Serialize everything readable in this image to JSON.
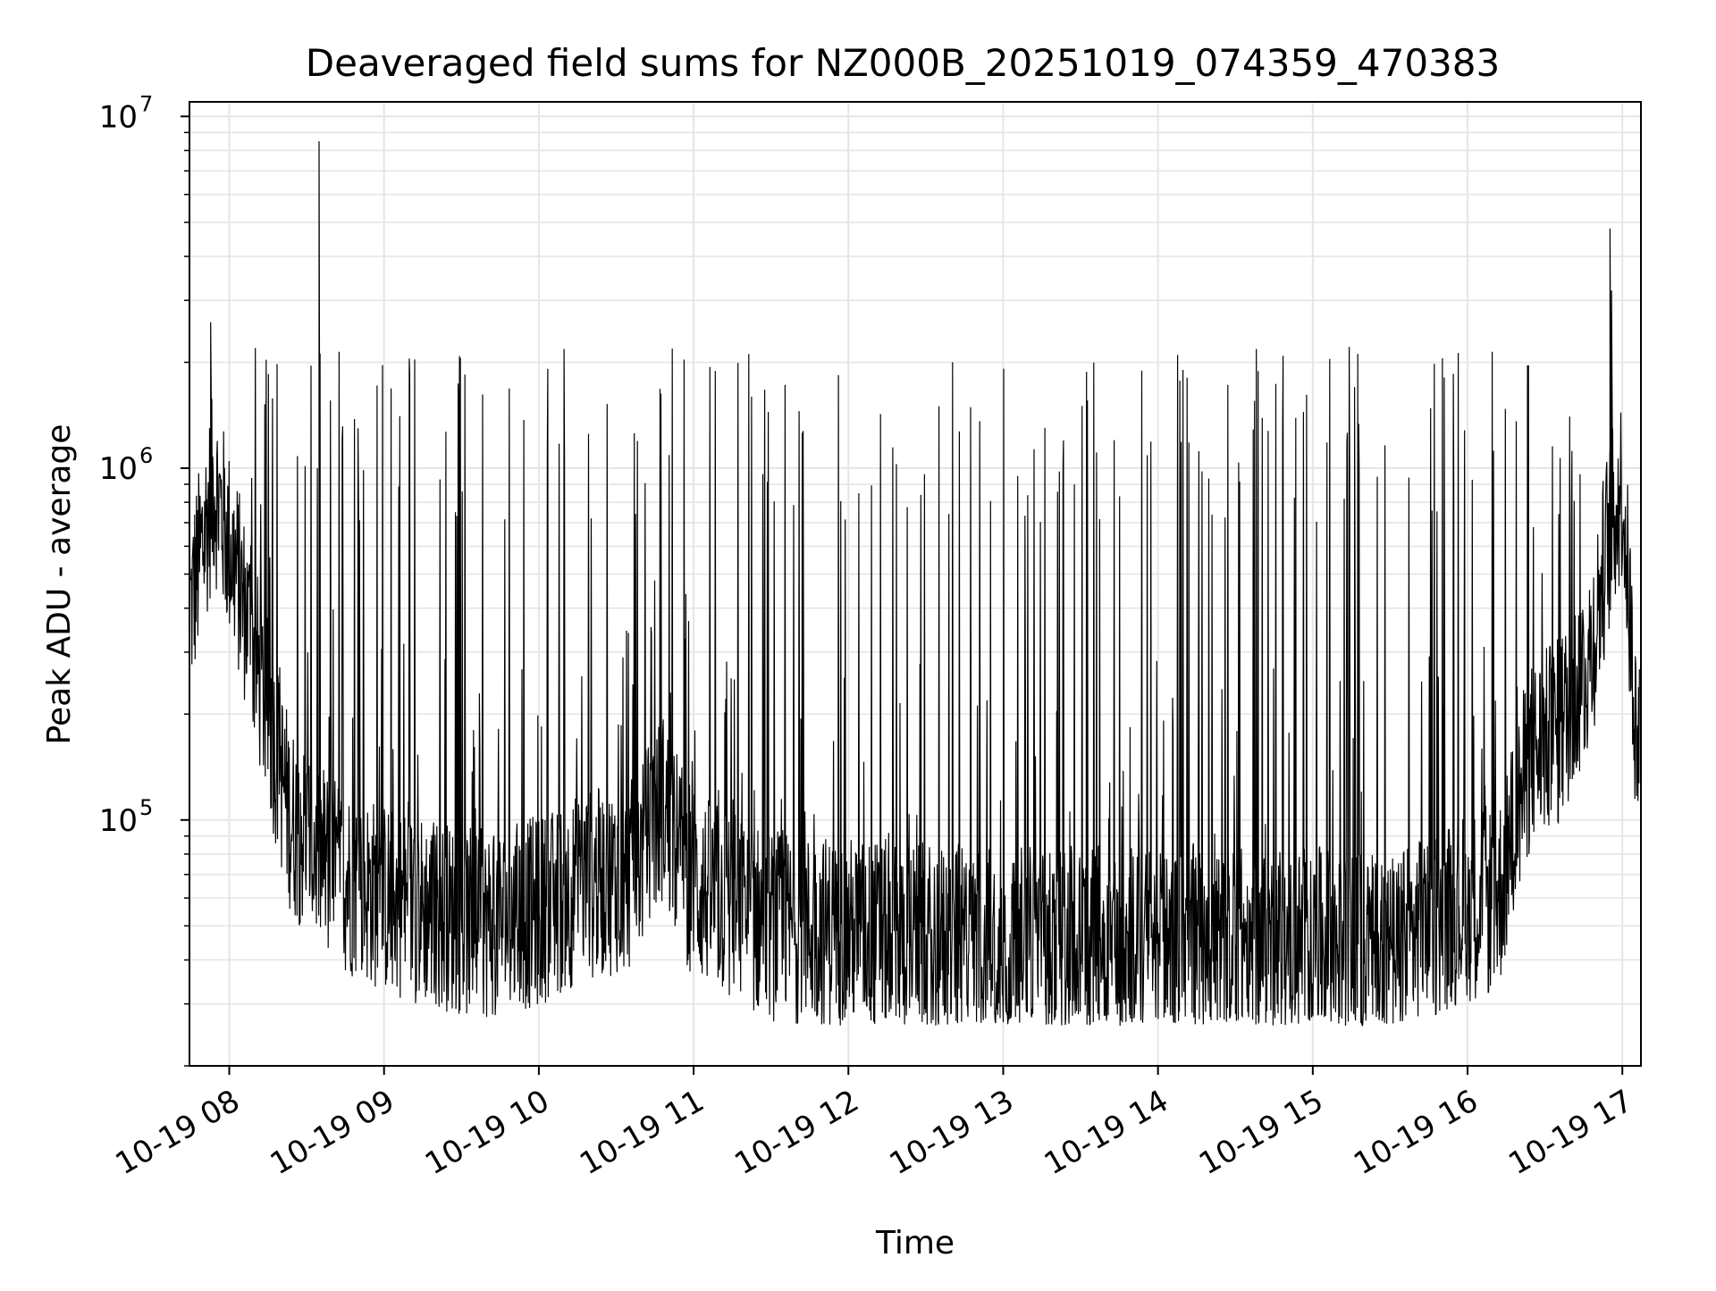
{
  "chart_data": {
    "type": "line",
    "title": "Deaveraged field sums for NZ000B_20251019_074359_470383",
    "xlabel": "Time",
    "ylabel": "Peak ADU - average",
    "yscale": "log",
    "ylim": [
      20000,
      11000000
    ],
    "xlim_hours": [
      7.743,
      17.12
    ],
    "x_ticks": [
      {
        "value": 8,
        "label": "10-19 08"
      },
      {
        "value": 9,
        "label": "10-19 09"
      },
      {
        "value": 10,
        "label": "10-19 10"
      },
      {
        "value": 11,
        "label": "10-19 11"
      },
      {
        "value": 12,
        "label": "10-19 12"
      },
      {
        "value": 13,
        "label": "10-19 13"
      },
      {
        "value": 14,
        "label": "10-19 14"
      },
      {
        "value": 15,
        "label": "10-19 15"
      },
      {
        "value": 16,
        "label": "10-19 16"
      },
      {
        "value": 17,
        "label": "10-19 17"
      }
    ],
    "y_ticks": [
      {
        "value": 100000,
        "base": "10",
        "exponent": "5"
      },
      {
        "value": 1000000,
        "base": "10",
        "exponent": "6"
      },
      {
        "value": 10000000,
        "base": "10",
        "exponent": "7"
      }
    ],
    "grid": true,
    "line_color": "#000000",
    "grid_color": "#e5e5e5",
    "series": [
      {
        "name": "Peak ADU - average",
        "baseline_profile": {
          "hours": [
            7.75,
            7.9,
            8.05,
            8.2,
            8.4,
            8.7,
            9.0,
            9.3,
            9.6,
            10.0,
            10.3,
            10.6,
            10.8,
            11.0,
            11.5,
            12.0,
            12.5,
            13.0,
            13.5,
            14.0,
            14.5,
            15.0,
            15.5,
            15.9,
            16.2,
            16.4,
            16.6,
            16.8,
            16.9,
            17.0,
            17.1
          ],
          "values": [
            400000,
            900000,
            500000,
            250000,
            100000,
            70000,
            60000,
            55000,
            50000,
            55000,
            65000,
            70000,
            110000,
            65000,
            50000,
            48000,
            46000,
            45000,
            45000,
            45000,
            45000,
            45000,
            42000,
            55000,
            60000,
            150000,
            180000,
            300000,
            600000,
            900000,
            150000
          ]
        },
        "notable_peaks": [
          {
            "hour": 8.58,
            "value": 8500000
          },
          {
            "hour": 16.92,
            "value": 4800000
          },
          {
            "hour": 16.93,
            "value": 3200000
          },
          {
            "hour": 7.88,
            "value": 2600000
          },
          {
            "hour": 15.27,
            "value": 1700000
          }
        ],
        "spike_level_typical": 1400000,
        "minimum_values": 26000
      }
    ]
  }
}
